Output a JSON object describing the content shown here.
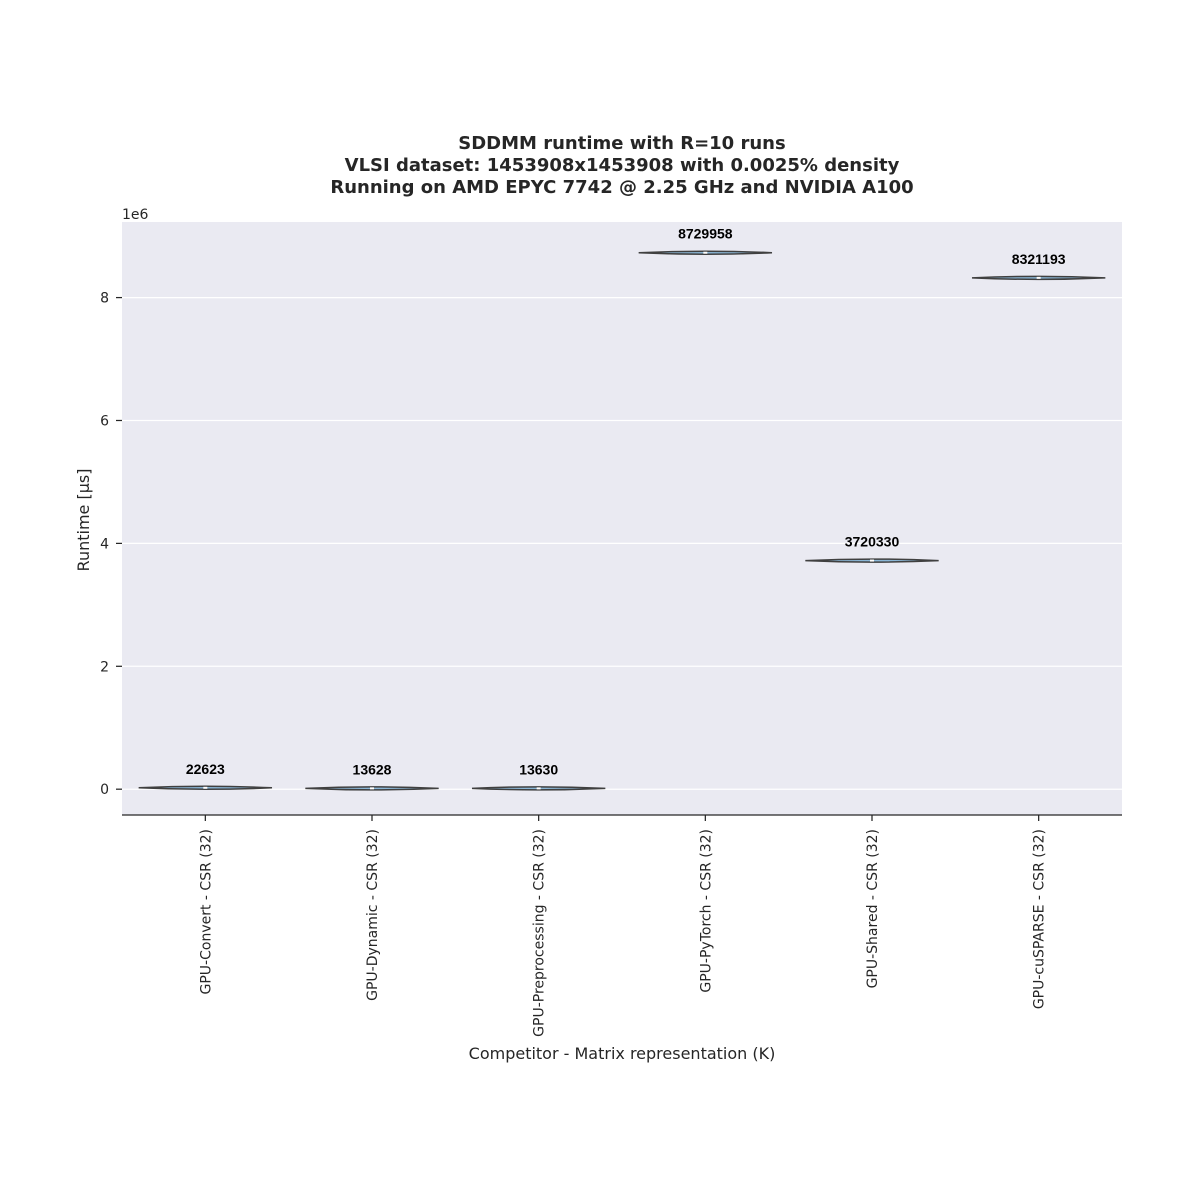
{
  "chart_data": {
    "type": "violin",
    "title_lines": [
      "SDDMM runtime with R=10 runs",
      "VLSI dataset: 1453908x1453908 with 0.0025% density",
      "Running on AMD EPYC 7742 @ 2.25 GHz and NVIDIA A100"
    ],
    "xlabel": "Competitor - Matrix representation (K)",
    "ylabel": "Runtime [µs]",
    "y_offset_label": "1e6",
    "ylim": [
      -420000,
      9230000
    ],
    "yticks": [
      0,
      2,
      4,
      6,
      8
    ],
    "ytick_multiplier": 1000000,
    "grid": true,
    "background": "#eaeaf2",
    "categories": [
      "GPU-Convert - CSR (32)",
      "GPU-Dynamic - CSR (32)",
      "GPU-Preprocessing - CSR (32)",
      "GPU-PyTorch - CSR (32)",
      "GPU-Shared - CSR (32)",
      "GPU-cuSPARSE - CSR (32)"
    ],
    "values": [
      22623,
      13628,
      13630,
      8729958,
      3720330,
      8321193
    ],
    "value_labels": [
      "22623",
      "13628",
      "13630",
      "8729958",
      "3720330",
      "8321193"
    ]
  }
}
